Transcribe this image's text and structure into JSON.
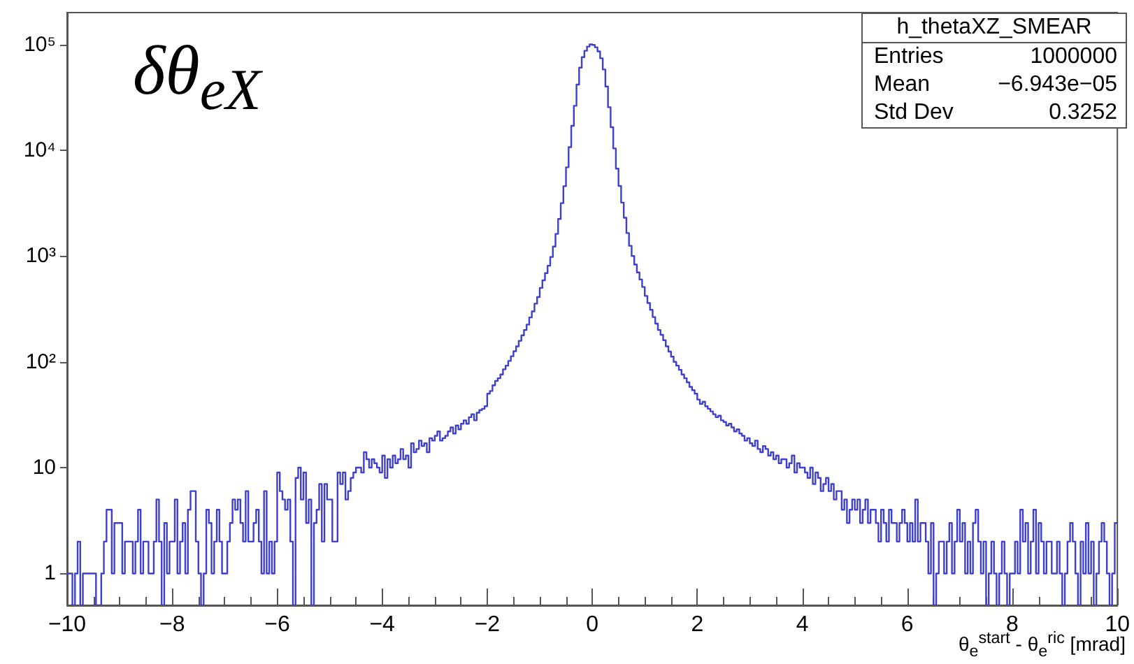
{
  "chart_data": {
    "type": "histogram",
    "title": "δθ$_{eX}$",
    "xlabel": "θ$_{e}$$^{start}$ - θ$_{e}$$^{ric}$ [mrad]",
    "annotations": [
      "h_thetaXZ_SMEAR",
      "Entries",
      "1000000",
      "Mean",
      "−6.943e−05",
      "Std Dev",
      "0.3252"
    ],
    "color": "#3f3fcf",
    "log": "y",
    "xlim": [
      -10,
      10
    ],
    "xticks": [
      -10,
      -8,
      -6,
      -4,
      -2,
      0,
      2,
      4,
      6,
      8,
      10
    ],
    "ylim": [
      0.5,
      200000
    ],
    "yticks": [
      {
        "value": 1,
        "label": "1"
      },
      {
        "value": 10,
        "label": "10"
      },
      {
        "value": 100,
        "label": "10²"
      },
      {
        "value": 1000,
        "label": "10³"
      },
      {
        "value": 10000,
        "label": "10⁴"
      },
      {
        "value": 100000,
        "label": "10⁵"
      }
    ],
    "bins": [
      -10,
      -9.95,
      -9.9,
      -9.85,
      -9.8,
      -9.75,
      -9.7,
      -9.65,
      -9.6,
      -9.55,
      -9.5,
      -9.45,
      -9.4,
      -9.35,
      -9.3,
      -9.25,
      -9.2,
      -9.15,
      -9.1,
      -9.05,
      -9,
      -8.95,
      -8.9,
      -8.85,
      -8.8,
      -8.75,
      -8.7,
      -8.65,
      -8.6,
      -8.55,
      -8.5,
      -8.45,
      -8.4,
      -8.35,
      -8.3,
      -8.25,
      -8.2,
      -8.15,
      -8.1,
      -8.05,
      -8,
      -7.95,
      -7.9,
      -7.85,
      -7.8,
      -7.75,
      -7.7,
      -7.65,
      -7.6,
      -7.55,
      -7.5,
      -7.45,
      -7.4,
      -7.35,
      -7.3,
      -7.25,
      -7.2,
      -7.15,
      -7.1,
      -7.05,
      -7,
      -6.95,
      -6.9,
      -6.85,
      -6.8,
      -6.75,
      -6.7,
      -6.65,
      -6.6,
      -6.55,
      -6.5,
      -6.45,
      -6.4,
      -6.35,
      -6.3,
      -6.25,
      -6.2,
      -6.15,
      -6.1,
      -6.05,
      -6,
      -5.95,
      -5.9,
      -5.85,
      -5.8,
      -5.75,
      -5.7,
      -5.65,
      -5.6,
      -5.55,
      -5.5,
      -5.45,
      -5.4,
      -5.35,
      -5.3,
      -5.25,
      -5.2,
      -5.15,
      -5.1,
      -5.05,
      -5,
      -4.95,
      -4.9,
      -4.85,
      -4.8,
      -4.75,
      -4.7,
      -4.65,
      -4.6,
      -4.55,
      -4.5,
      -4.45,
      -4.4,
      -4.35,
      -4.3,
      -4.25,
      -4.2,
      -4.15,
      -4.1,
      -4.05,
      -4,
      -3.95,
      -3.9,
      -3.85,
      -3.8,
      -3.75,
      -3.7,
      -3.65,
      -3.6,
      -3.55,
      -3.5,
      -3.45,
      -3.4,
      -3.35,
      -3.3,
      -3.25,
      -3.2,
      -3.15,
      -3.1,
      -3.05,
      -3,
      -2.95,
      -2.9,
      -2.85,
      -2.8,
      -2.75,
      -2.7,
      -2.65,
      -2.6,
      -2.55,
      -2.5,
      -2.45,
      -2.4,
      -2.35,
      -2.3,
      -2.25,
      -2.2,
      -2.15,
      -2.1,
      -2.05,
      -2,
      -1.95,
      -1.9,
      -1.85,
      -1.8,
      -1.75,
      -1.7,
      -1.65,
      -1.6,
      -1.55,
      -1.5,
      -1.45,
      -1.4,
      -1.35,
      -1.3,
      -1.25,
      -1.2,
      -1.15,
      -1.1,
      -1.05,
      -1,
      -0.95,
      -0.9,
      -0.85,
      -0.8,
      -0.75,
      -0.7,
      -0.65,
      -0.6,
      -0.55,
      -0.5,
      -0.45,
      -0.4,
      -0.35,
      -0.3,
      -0.25,
      -0.2,
      -0.15,
      -0.1,
      -0.05,
      0,
      0.05,
      0.1,
      0.15,
      0.2,
      0.25,
      0.3,
      0.35,
      0.4,
      0.45,
      0.5,
      0.55,
      0.6,
      0.65,
      0.7,
      0.75,
      0.8,
      0.85,
      0.9,
      0.95,
      1,
      1.05,
      1.1,
      1.15,
      1.2,
      1.25,
      1.3,
      1.35,
      1.4,
      1.45,
      1.5,
      1.55,
      1.6,
      1.65,
      1.7,
      1.75,
      1.8,
      1.85,
      1.9,
      1.95,
      2,
      2.05,
      2.1,
      2.15,
      2.2,
      2.25,
      2.3,
      2.35,
      2.4,
      2.45,
      2.5,
      2.55,
      2.6,
      2.65,
      2.7,
      2.75,
      2.8,
      2.85,
      2.9,
      2.95,
      3,
      3.05,
      3.1,
      3.15,
      3.2,
      3.25,
      3.3,
      3.35,
      3.4,
      3.45,
      3.5,
      3.55,
      3.6,
      3.65,
      3.7,
      3.75,
      3.8,
      3.85,
      3.9,
      3.95,
      4,
      4.05,
      4.1,
      4.15,
      4.2,
      4.25,
      4.3,
      4.35,
      4.4,
      4.45,
      4.5,
      4.55,
      4.6,
      4.65,
      4.7,
      4.75,
      4.8,
      4.85,
      4.9,
      4.95,
      5,
      5.05,
      5.1,
      5.15,
      5.2,
      5.25,
      5.3,
      5.35,
      5.4,
      5.45,
      5.5,
      5.55,
      5.6,
      5.65,
      5.7,
      5.75,
      5.8,
      5.85,
      5.9,
      5.95,
      6,
      6.05,
      6.1,
      6.15,
      6.2,
      6.25,
      6.3,
      6.35,
      6.4,
      6.45,
      6.5,
      6.55,
      6.6,
      6.65,
      6.7,
      6.75,
      6.8,
      6.85,
      6.9,
      6.95,
      7,
      7.05,
      7.1,
      7.15,
      7.2,
      7.25,
      7.3,
      7.35,
      7.4,
      7.45,
      7.5,
      7.55,
      7.6,
      7.65,
      7.7,
      7.75,
      7.8,
      7.85,
      7.9,
      7.95,
      8,
      8.05,
      8.1,
      8.15,
      8.2,
      8.25,
      8.3,
      8.35,
      8.4,
      8.45,
      8.5,
      8.55,
      8.6,
      8.65,
      8.7,
      8.75,
      8.8,
      8.85,
      8.9,
      8.95,
      9,
      9.05,
      9.1,
      9.15,
      9.2,
      9.25,
      9.3,
      9.35,
      9.4,
      9.45,
      9.5,
      9.55,
      9.6,
      9.65,
      9.7,
      9.75,
      9.8,
      9.85,
      9.9,
      9.95,
      10
    ],
    "values": [
      1,
      1,
      null,
      1,
      2,
      null,
      1,
      1,
      1,
      1,
      1,
      null,
      null,
      1,
      2,
      4,
      4,
      1,
      3,
      3,
      3,
      1,
      2,
      2,
      2,
      1,
      2,
      4,
      1,
      2,
      2,
      1,
      1,
      2,
      5,
      2,
      null,
      3,
      1,
      2,
      2,
      5,
      1,
      2,
      3,
      1,
      4,
      6,
      6,
      2,
      1,
      null,
      1,
      4,
      3,
      1,
      2,
      4,
      2,
      1,
      1,
      2,
      3,
      5,
      4,
      5,
      3,
      2,
      6,
      2,
      2,
      3,
      4,
      2,
      1,
      6,
      1,
      2,
      1,
      2,
      9,
      6,
      5,
      4,
      5,
      2,
      null,
      8,
      10,
      5,
      9,
      3,
      5,
      null,
      3,
      4,
      7,
      2,
      7,
      5,
      5,
      2,
      2,
      9,
      7,
      9,
      5,
      6,
      8,
      9,
      10,
      10,
      9,
      14,
      12,
      10,
      12,
      11,
      10,
      9,
      13,
      8,
      12,
      10,
      13,
      11,
      12,
      15,
      12,
      13,
      10,
      17,
      14,
      15,
      18,
      16,
      17,
      14,
      19,
      18,
      20,
      22,
      18,
      19,
      20,
      22,
      24,
      21,
      25,
      23,
      26,
      28,
      26,
      30,
      32,
      28,
      33,
      35,
      36,
      38,
      50,
      53,
      60,
      66,
      70,
      76,
      85,
      92,
      102,
      113,
      126,
      140,
      158,
      178,
      200,
      225,
      263,
      300,
      355,
      410,
      500,
      590,
      690,
      810,
      980,
      1230,
      1620,
      2240,
      3160,
      4570,
      6900,
      10700,
      17000,
      26300,
      41700,
      60300,
      75900,
      87100,
      95500,
      100000,
      99000,
      94000,
      86000,
      74000,
      58000,
      40000,
      25500,
      16500,
      10400,
      6700,
      4600,
      3200,
      2300,
      1650,
      1250,
      1000,
      830,
      700,
      600,
      510,
      420,
      360,
      310,
      265,
      230,
      200,
      180,
      160,
      140,
      125,
      112,
      100,
      92,
      84,
      76,
      70,
      64,
      58,
      54,
      50,
      44,
      40,
      42,
      38,
      36,
      34,
      32,
      30,
      31,
      28,
      27,
      25,
      26,
      24,
      22,
      23,
      21,
      20,
      18,
      19,
      17,
      16,
      18,
      15,
      14,
      16,
      15,
      13,
      14,
      12,
      13,
      11,
      12,
      12,
      10,
      11,
      13,
      9,
      11,
      10,
      10,
      9,
      8,
      10,
      7,
      9,
      8,
      6,
      7,
      8,
      6,
      7,
      5,
      6,
      6,
      4,
      5,
      3,
      4,
      5,
      4,
      5,
      3,
      4,
      5,
      3,
      4,
      4,
      3,
      2,
      4,
      3,
      2,
      4,
      3,
      3,
      2,
      3,
      4,
      3,
      2,
      3,
      2,
      5,
      2,
      3,
      3,
      2,
      1,
      3,
      null,
      1,
      2,
      2,
      1,
      2,
      3,
      1,
      2,
      4,
      2,
      3,
      1,
      2,
      1,
      3,
      4,
      2,
      1,
      2,
      null,
      1,
      2,
      1,
      null,
      1,
      2,
      1,
      null,
      1,
      1,
      2,
      1,
      4,
      2,
      3,
      1,
      2,
      4,
      1,
      3,
      2,
      1,
      2,
      2,
      1,
      1,
      2,
      1,
      null,
      1,
      2,
      3,
      2,
      1,
      null,
      2,
      1,
      3,
      1,
      2,
      null,
      1,
      2,
      3,
      2,
      1,
      null,
      1,
      3
    ]
  }
}
